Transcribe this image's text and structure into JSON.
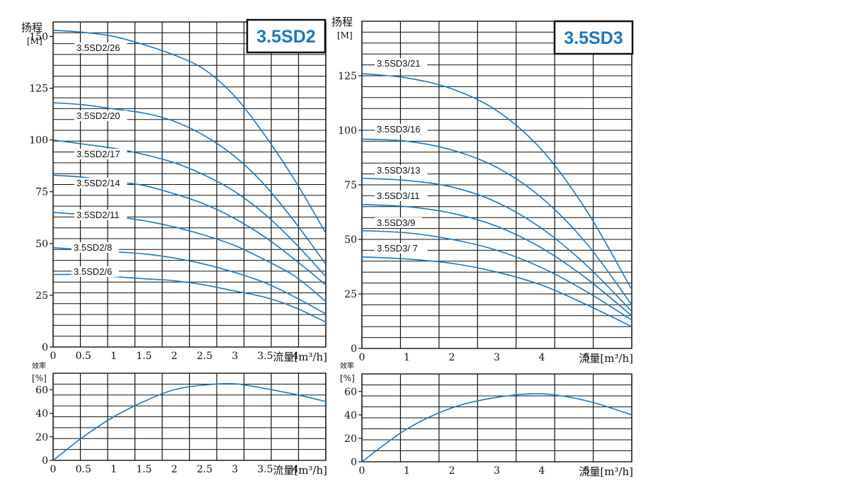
{
  "chart_data": [
    {
      "id": "sd2_head",
      "type": "line",
      "title": "3.5SD2",
      "ylabel_line1": "扬程",
      "ylabel_line2": "[M]",
      "xlabel": "流量[m³/h]",
      "xlim": [
        0,
        4.5
      ],
      "ylim": [
        0,
        157
      ],
      "xticks": [
        "0",
        "0.5",
        "1",
        "1.5",
        "2",
        "2.5",
        "3",
        "3.5",
        "4"
      ],
      "yticks": [
        "0",
        "25",
        "50",
        "75",
        "100",
        "125",
        "150"
      ],
      "series": [
        {
          "name": "3.5SD2/26",
          "x": [
            0,
            0.5,
            1,
            1.5,
            2,
            2.5,
            3,
            3.5,
            4,
            4.5
          ],
          "y": [
            153,
            152,
            150,
            146,
            141,
            134,
            121,
            102,
            80,
            55
          ]
        },
        {
          "name": "3.5SD2/20",
          "x": [
            0,
            0.5,
            1,
            1.5,
            2,
            2.5,
            3,
            3.5,
            4,
            4.5
          ],
          "y": [
            118,
            117,
            115,
            113,
            109,
            102,
            92,
            78,
            60,
            40
          ]
        },
        {
          "name": "3.5SD2/17",
          "x": [
            0,
            0.5,
            1,
            1.5,
            2,
            2.5,
            3,
            3.5,
            4,
            4.5
          ],
          "y": [
            100,
            98,
            96,
            93,
            89,
            83,
            75,
            64,
            50,
            34
          ]
        },
        {
          "name": "3.5SD2/14",
          "x": [
            0,
            0.5,
            1,
            1.5,
            2,
            2.5,
            3,
            3.5,
            4,
            4.5
          ],
          "y": [
            83,
            82,
            80,
            78,
            74,
            69,
            62,
            53,
            42,
            30
          ]
        },
        {
          "name": "3.5SD2/11",
          "x": [
            0,
            0.5,
            1,
            1.5,
            2,
            2.5,
            3,
            3.5,
            4,
            4.5
          ],
          "y": [
            65,
            64,
            63,
            61,
            58,
            54,
            49,
            42,
            34,
            22
          ]
        },
        {
          "name": "3.5SD2/8",
          "x": [
            0,
            0.5,
            1,
            1.5,
            2,
            2.5,
            3,
            3.5,
            4,
            4.5
          ],
          "y": [
            48,
            47,
            46,
            45,
            43,
            40,
            36,
            31,
            24,
            16
          ]
        },
        {
          "name": "3.5SD2/6",
          "x": [
            0,
            0.5,
            1,
            1.5,
            2,
            2.5,
            3,
            3.5,
            4,
            4.5
          ],
          "y": [
            35,
            35,
            34,
            33,
            32,
            30,
            27,
            24,
            19,
            12
          ]
        }
      ]
    },
    {
      "id": "sd2_eff",
      "type": "line",
      "ylabel_line1": "效率",
      "ylabel_line2": "[%]",
      "xlabel": "流量[m³/h]",
      "xlim": [
        0,
        4.5
      ],
      "ylim": [
        0,
        74
      ],
      "xticks": [
        "0",
        "0.5",
        "1",
        "1.5",
        "2",
        "2.5",
        "3",
        "3.5",
        "4"
      ],
      "yticks": [
        "0",
        "20",
        "40",
        "60"
      ],
      "series": [
        {
          "name": "",
          "x": [
            0,
            0.5,
            1,
            1.5,
            2,
            2.5,
            3,
            3.5,
            4,
            4.5
          ],
          "y": [
            0,
            20,
            37,
            50,
            60,
            64,
            65,
            61,
            56,
            50
          ]
        }
      ]
    },
    {
      "id": "sd3_head",
      "type": "line",
      "title": "3.5SD3",
      "ylabel_line1": "扬程",
      "ylabel_line2": "[M]",
      "xlabel": "流量[m³/h]",
      "xlim": [
        0,
        6
      ],
      "ylim": [
        0,
        150
      ],
      "xticks": [
        "0",
        "1",
        "2",
        "3",
        "4",
        "5"
      ],
      "yticks": [
        "0",
        "25",
        "50",
        "75",
        "100",
        "125"
      ],
      "series": [
        {
          "name": "3.5SD3/21",
          "x": [
            0,
            1,
            2,
            3,
            4,
            5,
            6
          ],
          "y": [
            126,
            124,
            119,
            109,
            91,
            63,
            27
          ]
        },
        {
          "name": "3.5SD3/16",
          "x": [
            0,
            1,
            2,
            3,
            4,
            5,
            6
          ],
          "y": [
            96,
            95,
            91,
            83,
            69,
            48,
            20
          ]
        },
        {
          "name": "3.5SD3/13",
          "x": [
            0,
            1,
            2,
            3,
            4,
            5,
            6
          ],
          "y": [
            78,
            77,
            74,
            67,
            55,
            38,
            17
          ]
        },
        {
          "name": "3.5SD3/11",
          "x": [
            0,
            1,
            2,
            3,
            4,
            5,
            6
          ],
          "y": [
            66,
            65,
            62,
            56,
            46,
            32,
            15
          ]
        },
        {
          "name": "3.5SD3/9",
          "x": [
            0,
            1,
            2,
            3,
            4,
            5,
            6
          ],
          "y": [
            54,
            53,
            50,
            45,
            37,
            26,
            13
          ]
        },
        {
          "name": "3.5SD3/ 7",
          "x": [
            0,
            1,
            2,
            3,
            4,
            5,
            6
          ],
          "y": [
            42,
            41,
            39,
            35,
            29,
            20,
            10
          ]
        }
      ]
    },
    {
      "id": "sd3_eff",
      "type": "line",
      "ylabel_line1": "效率",
      "ylabel_line2": "[%]",
      "xlabel": "流量[m³/h]",
      "xlim": [
        0,
        6
      ],
      "ylim": [
        0,
        75
      ],
      "xticks": [
        "0",
        "1",
        "2",
        "3",
        "4",
        "5"
      ],
      "yticks": [
        "0",
        "20",
        "40",
        "60"
      ],
      "series": [
        {
          "name": "",
          "x": [
            0,
            1,
            2,
            3,
            4,
            5,
            6
          ],
          "y": [
            0,
            28,
            46,
            55,
            58,
            52,
            40
          ]
        }
      ]
    }
  ],
  "colors": {
    "curve": "#1a78c2",
    "grid": "#111111",
    "model_text": "#1a78c2"
  }
}
